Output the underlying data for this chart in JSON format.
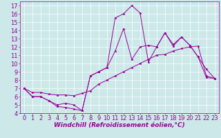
{
  "xlabel": "Windchill (Refroidissement éolien,°C)",
  "xlim": [
    -0.5,
    23.5
  ],
  "ylim": [
    4,
    17.5
  ],
  "xticks": [
    0,
    1,
    2,
    3,
    4,
    5,
    6,
    7,
    8,
    9,
    10,
    11,
    12,
    13,
    14,
    15,
    16,
    17,
    18,
    19,
    20,
    21,
    22,
    23
  ],
  "yticks": [
    4,
    5,
    6,
    7,
    8,
    9,
    10,
    11,
    12,
    13,
    14,
    15,
    16,
    17
  ],
  "bg_color": "#cce8e8",
  "grid_color": "#ffffff",
  "line_color": "#990099",
  "line1_x": [
    0,
    1,
    2,
    3,
    4,
    5,
    6,
    7,
    8,
    9,
    10,
    11,
    12,
    13,
    14,
    15,
    16,
    17,
    18,
    19,
    20,
    21,
    22,
    23
  ],
  "line1_y": [
    7,
    6,
    6,
    5.5,
    4.8,
    4.7,
    4.5,
    4.3,
    8.5,
    9.0,
    9.5,
    15.5,
    16.0,
    17.0,
    16.1,
    10.2,
    12.0,
    13.7,
    12.1,
    13.2,
    12.2,
    10.8,
    8.3,
    8.2
  ],
  "line2_x": [
    0,
    1,
    2,
    3,
    4,
    5,
    6,
    7,
    8,
    9,
    10,
    11,
    12,
    13,
    14,
    15,
    16,
    17,
    18,
    19,
    20,
    21,
    22,
    23
  ],
  "line2_y": [
    7,
    6,
    6,
    5.5,
    5.0,
    5.2,
    5.0,
    4.3,
    8.5,
    9.0,
    9.5,
    11.5,
    14.2,
    10.5,
    12.0,
    12.2,
    12.0,
    13.7,
    12.3,
    13.2,
    12.2,
    10.8,
    9.3,
    8.2
  ],
  "line3_x": [
    0,
    1,
    2,
    3,
    4,
    5,
    6,
    7,
    8,
    9,
    10,
    11,
    12,
    13,
    14,
    15,
    16,
    17,
    18,
    19,
    20,
    21,
    22,
    23
  ],
  "line3_y": [
    7.0,
    6.5,
    6.5,
    6.3,
    6.2,
    6.2,
    6.1,
    6.4,
    6.7,
    7.5,
    8.0,
    8.5,
    9.0,
    9.5,
    10.0,
    10.5,
    11.0,
    11.1,
    11.5,
    11.8,
    12.0,
    12.1,
    8.5,
    8.2
  ],
  "font_size": 6,
  "xlabel_fontsize": 6.5
}
